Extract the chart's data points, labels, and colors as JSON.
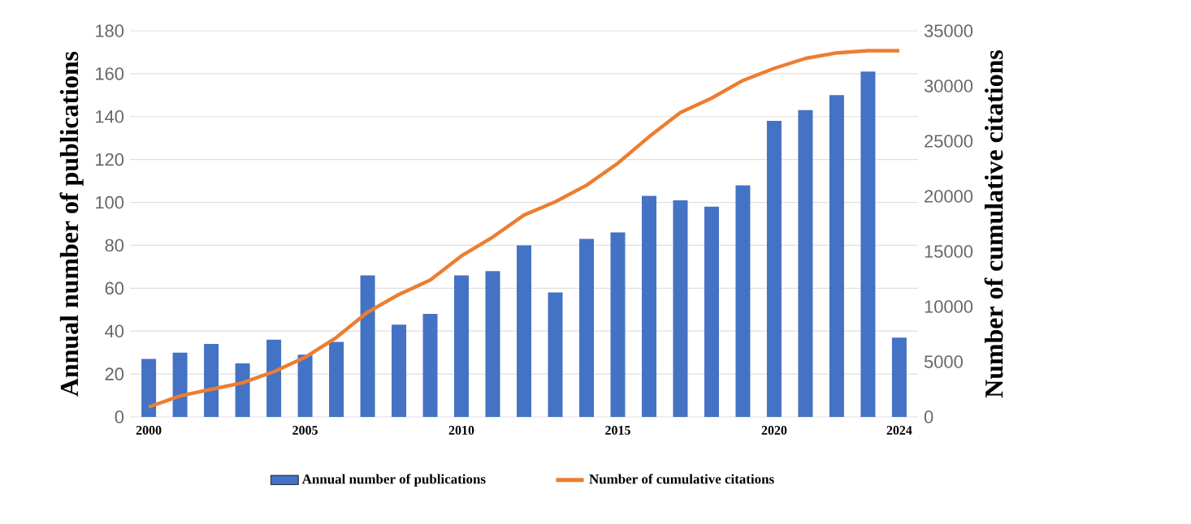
{
  "chart_data": {
    "type": "bar",
    "ylabel": "Annual number of publications",
    "y2label": "Number of cumulative citations",
    "categories": [
      "2000",
      null,
      null,
      null,
      null,
      "2005",
      null,
      null,
      null,
      null,
      "2010",
      null,
      null,
      null,
      null,
      "2015",
      null,
      null,
      null,
      null,
      "2020",
      null,
      null,
      null,
      "2024"
    ],
    "series": [
      {
        "name": "Annual number of publications",
        "color": "#4472c4",
        "values": [
          27,
          30,
          34,
          25,
          36,
          29,
          35,
          66,
          43,
          48,
          66,
          68,
          80,
          58,
          83,
          86,
          103,
          101,
          98,
          108,
          138,
          143,
          150,
          161,
          37
        ]
      },
      {
        "name": "Number of cumulative citations",
        "type": "line",
        "axis": "y2",
        "color": "#ed7d31",
        "values": [
          900,
          1900,
          2500,
          3100,
          4100,
          5400,
          7200,
          9500,
          11100,
          12400,
          14600,
          16300,
          18300,
          19500,
          21000,
          23000,
          25400,
          27600,
          28900,
          30500,
          31600,
          32500,
          33000,
          33200,
          33200
        ]
      }
    ],
    "ylim": [
      0,
      180
    ],
    "yticks": [
      0,
      20,
      40,
      60,
      80,
      100,
      120,
      140,
      160,
      180
    ],
    "y2lim": [
      0,
      35000
    ],
    "y2ticks": [
      0,
      5000,
      10000,
      15000,
      20000,
      25000,
      30000,
      35000
    ],
    "grid": "y",
    "legend": "bottom"
  }
}
